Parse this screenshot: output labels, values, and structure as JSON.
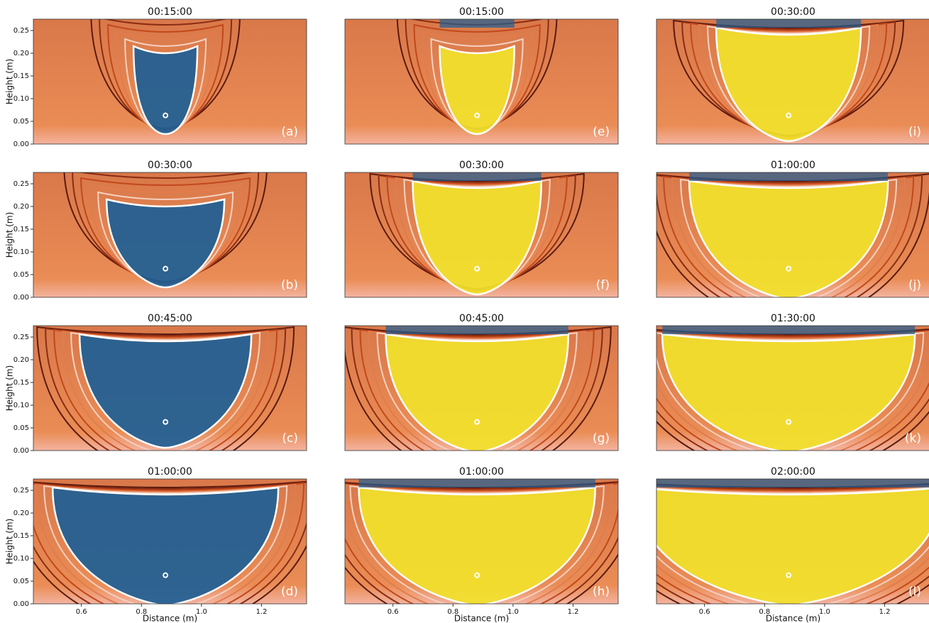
{
  "chart_data": [
    {
      "type": "image",
      "title": "00:15:00",
      "panel_label": "(a)",
      "plume_color": "#1f5f95",
      "xlim": [
        0.44,
        1.35
      ],
      "ylim": [
        0,
        0.275
      ],
      "ylabel": "Height (m)",
      "yticks": [
        {
          "value": 0,
          "label": "0.00"
        },
        {
          "value": 0.05,
          "label": "0.05"
        },
        {
          "value": 0.1,
          "label": "0.10"
        },
        {
          "value": 0.15,
          "label": "0.15"
        },
        {
          "value": 0.2,
          "label": "0.20"
        },
        {
          "value": 0.25,
          "label": "0.25"
        }
      ]
    },
    {
      "type": "image",
      "title": "00:15:00",
      "panel_label": "(e)",
      "plume_color": "#f2e22c",
      "xlim": [
        0.44,
        1.35
      ],
      "ylim": [
        0,
        0.275
      ]
    },
    {
      "type": "image",
      "title": "00:30:00",
      "panel_label": "(i)",
      "plume_color": "#f2e22c",
      "xlim": [
        0.44,
        1.35
      ],
      "ylim": [
        0,
        0.275
      ]
    },
    {
      "type": "image",
      "title": "00:30:00",
      "panel_label": "(b)",
      "plume_color": "#1f5f95",
      "xlim": [
        0.44,
        1.35
      ],
      "ylim": [
        0,
        0.275
      ],
      "ylabel": "Height (m)",
      "yticks": [
        {
          "value": 0,
          "label": "0.00"
        },
        {
          "value": 0.05,
          "label": "0.05"
        },
        {
          "value": 0.1,
          "label": "0.10"
        },
        {
          "value": 0.15,
          "label": "0.15"
        },
        {
          "value": 0.2,
          "label": "0.20"
        },
        {
          "value": 0.25,
          "label": "0.25"
        }
      ]
    },
    {
      "type": "image",
      "title": "00:30:00",
      "panel_label": "(f)",
      "plume_color": "#f2e22c",
      "xlim": [
        0.44,
        1.35
      ],
      "ylim": [
        0,
        0.275
      ]
    },
    {
      "type": "image",
      "title": "01:00:00",
      "panel_label": "(j)",
      "plume_color": "#f2e22c",
      "xlim": [
        0.44,
        1.35
      ],
      "ylim": [
        0,
        0.275
      ]
    },
    {
      "type": "image",
      "title": "00:45:00",
      "panel_label": "(c)",
      "plume_color": "#1f5f95",
      "xlim": [
        0.44,
        1.35
      ],
      "ylim": [
        0,
        0.275
      ],
      "ylabel": "Height (m)",
      "yticks": [
        {
          "value": 0,
          "label": "0.00"
        },
        {
          "value": 0.05,
          "label": "0.05"
        },
        {
          "value": 0.1,
          "label": "0.10"
        },
        {
          "value": 0.15,
          "label": "0.15"
        },
        {
          "value": 0.2,
          "label": "0.20"
        },
        {
          "value": 0.25,
          "label": "0.25"
        }
      ]
    },
    {
      "type": "image",
      "title": "00:45:00",
      "panel_label": "(g)",
      "plume_color": "#f2e22c",
      "xlim": [
        0.44,
        1.35
      ],
      "ylim": [
        0,
        0.275
      ]
    },
    {
      "type": "image",
      "title": "01:30:00",
      "panel_label": "(k)",
      "plume_color": "#f2e22c",
      "xlim": [
        0.44,
        1.35
      ],
      "ylim": [
        0,
        0.275
      ]
    },
    {
      "type": "image",
      "title": "01:00:00",
      "panel_label": "(d)",
      "plume_color": "#1f5f95",
      "xlim": [
        0.44,
        1.35
      ],
      "ylim": [
        0,
        0.275
      ],
      "ylabel": "Height (m)",
      "xlabel": "Distance (m)",
      "yticks": [
        {
          "value": 0,
          "label": "0.00"
        },
        {
          "value": 0.05,
          "label": "0.05"
        },
        {
          "value": 0.1,
          "label": "0.10"
        },
        {
          "value": 0.15,
          "label": "0.15"
        },
        {
          "value": 0.2,
          "label": "0.20"
        },
        {
          "value": 0.25,
          "label": "0.25"
        }
      ],
      "xticks": [
        0.6,
        0.8,
        {
          "value": 1,
          "label": "1.0"
        },
        1.2
      ]
    },
    {
      "type": "image",
      "title": "01:00:00",
      "panel_label": "(h)",
      "plume_color": "#f2e22c",
      "xlim": [
        0.44,
        1.35
      ],
      "ylim": [
        0,
        0.275
      ],
      "xlabel": "Distance (m)",
      "xticks": [
        0.6,
        0.8,
        {
          "value": 1,
          "label": "1.0"
        },
        1.2
      ]
    },
    {
      "type": "image",
      "title": "02:00:00",
      "panel_label": "(l)",
      "plume_color": "#f2e22c",
      "xlim": [
        0.44,
        1.35
      ],
      "ylim": [
        0,
        0.275
      ],
      "xlabel": "Distance (m)",
      "xticks": [
        0.6,
        0.8,
        {
          "value": 1,
          "label": "1.0"
        },
        1.2
      ]
    }
  ]
}
